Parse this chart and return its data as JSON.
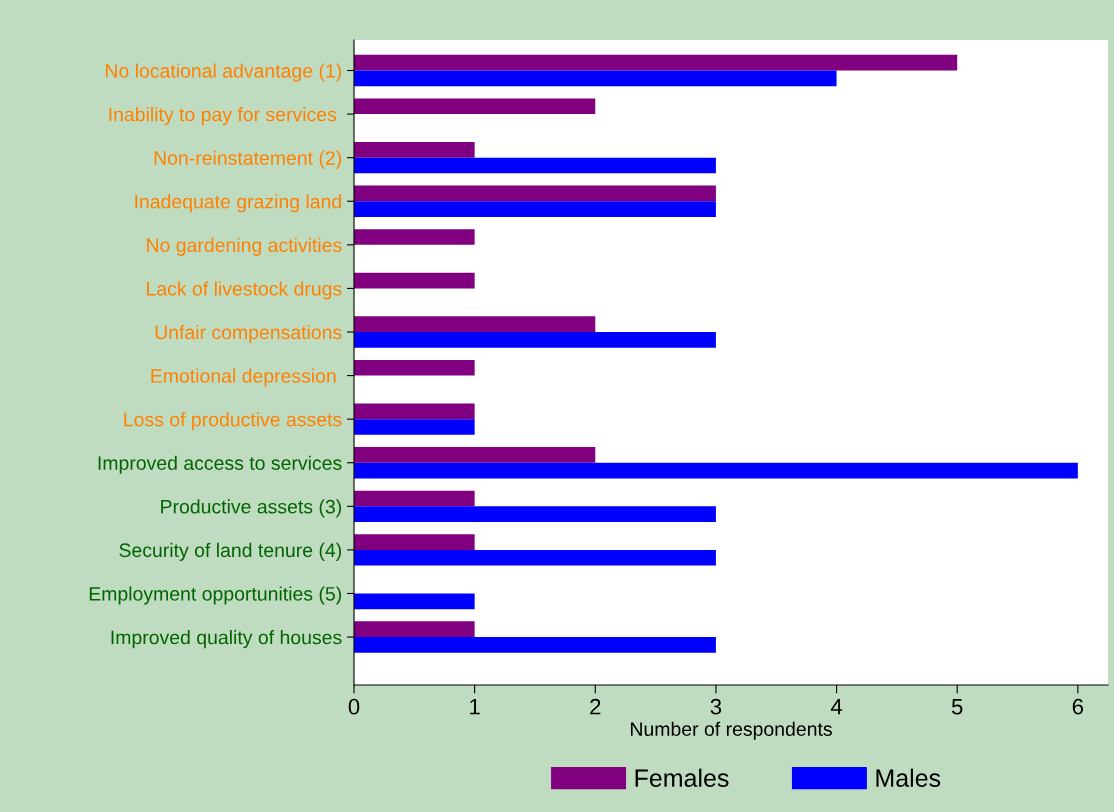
{
  "chart_data": {
    "type": "bar",
    "orientation": "horizontal",
    "xlabel": "Number of respondents",
    "categories": [
      "No locational advantage (1)",
      "Inability to pay for services ",
      "Non-reinstatement (2)",
      "Inadequate grazing land",
      "No gardening activities",
      "Lack of livestock drugs",
      "Unfair compensations",
      "Emotional depression ",
      "Loss of productive assets",
      "Improved access to services",
      "Productive assets (3)",
      "Security of land tenure (4)",
      "Employment opportunities (5)",
      "Improved quality of houses"
    ],
    "series": [
      {
        "name": "Females",
        "color": "#800080",
        "values": [
          5,
          2,
          1,
          3,
          1,
          1,
          2,
          1,
          1,
          2,
          1,
          1,
          null,
          1
        ]
      },
      {
        "name": "Males",
        "color": "#0000ff",
        "values": [
          4,
          null,
          3,
          3,
          null,
          null,
          3,
          null,
          1,
          6,
          3,
          3,
          1,
          3
        ]
      }
    ],
    "xlim": [
      0,
      6.25
    ],
    "xticks": [
      0,
      1,
      2,
      3,
      4,
      5,
      6
    ],
    "grid": false,
    "legend": "bottom"
  }
}
